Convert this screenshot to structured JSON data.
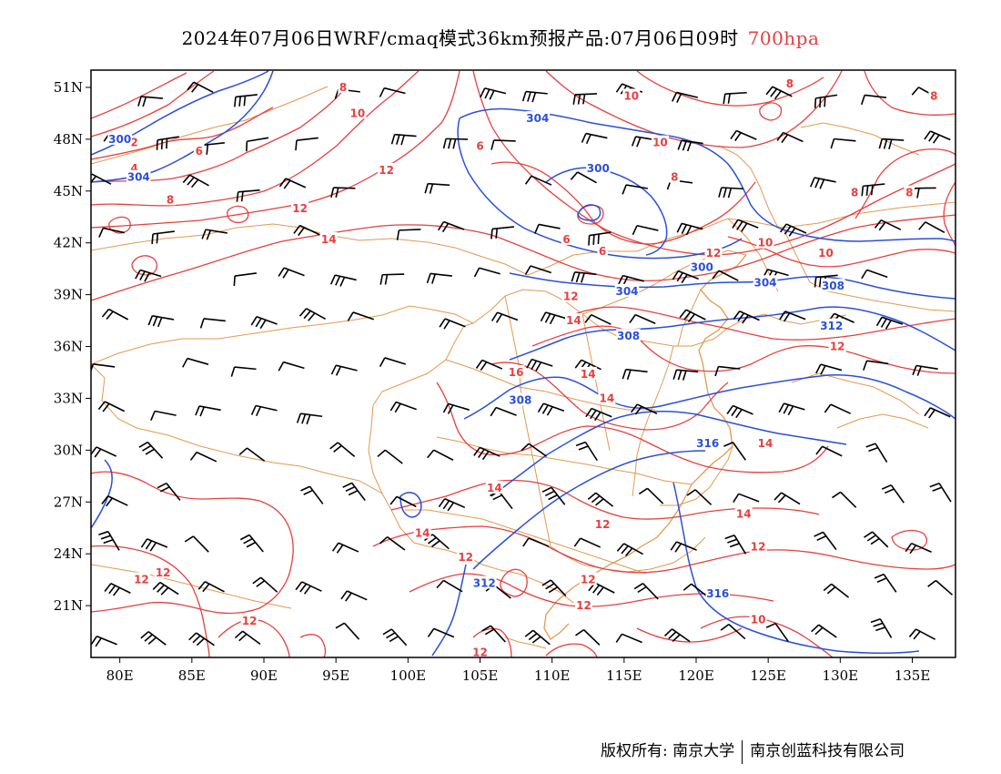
{
  "title": {
    "main": "2024年07月06日WRF/cmaq模式36km预报产品:07月06日09时",
    "level": "700hpa"
  },
  "copyright": {
    "owner": "版权所有: 南京大学",
    "company": "南京创蓝科技有限公司"
  },
  "colors": {
    "temperature": "#e5403f",
    "height": "#2b4fd9",
    "border": "#e09a50",
    "wind": "#000000"
  },
  "map": {
    "lon_range": [
      78,
      138
    ],
    "lat_range": [
      18,
      52
    ],
    "lon_ticks": [
      80,
      85,
      90,
      95,
      100,
      105,
      110,
      115,
      120,
      125,
      130,
      135
    ],
    "lon_tick_labels": [
      "80E",
      "85E",
      "90E",
      "95E",
      "100E",
      "105E",
      "110E",
      "115E",
      "120E",
      "125E",
      "130E",
      "135E"
    ],
    "lat_ticks": [
      21,
      24,
      27,
      30,
      33,
      36,
      39,
      42,
      45,
      48,
      51
    ],
    "lat_tick_labels": [
      "21N",
      "24N",
      "27N",
      "30N",
      "33N",
      "36N",
      "39N",
      "42N",
      "45N",
      "48N",
      "51N"
    ]
  },
  "temperature_labels": [
    {
      "text": "8",
      "lon": 95.5,
      "lat": 51.0
    },
    {
      "text": "10",
      "lon": 96.5,
      "lat": 49.5
    },
    {
      "text": "2",
      "lon": 81.0,
      "lat": 47.8
    },
    {
      "text": "4",
      "lon": 81.0,
      "lat": 46.3
    },
    {
      "text": "6",
      "lon": 85.5,
      "lat": 47.3
    },
    {
      "text": "8",
      "lon": 83.5,
      "lat": 44.5
    },
    {
      "text": "12",
      "lon": 98.5,
      "lat": 46.2
    },
    {
      "text": "12",
      "lon": 92.5,
      "lat": 44.0
    },
    {
      "text": "14",
      "lon": 94.5,
      "lat": 42.2
    },
    {
      "text": "8",
      "lon": 118.5,
      "lat": 45.8
    },
    {
      "text": "10",
      "lon": 117.5,
      "lat": 47.8
    },
    {
      "text": "10",
      "lon": 115.5,
      "lat": 50.5
    },
    {
      "text": "8",
      "lon": 126.5,
      "lat": 51.2
    },
    {
      "text": "8",
      "lon": 136.5,
      "lat": 50.5
    },
    {
      "text": "8",
      "lon": 131.0,
      "lat": 44.9
    },
    {
      "text": "8",
      "lon": 134.8,
      "lat": 44.9
    },
    {
      "text": "6",
      "lon": 105.0,
      "lat": 47.6
    },
    {
      "text": "6",
      "lon": 111.0,
      "lat": 42.2
    },
    {
      "text": "6",
      "lon": 113.5,
      "lat": 41.5
    },
    {
      "text": "12",
      "lon": 121.2,
      "lat": 41.4
    },
    {
      "text": "10",
      "lon": 124.8,
      "lat": 42.0
    },
    {
      "text": "10",
      "lon": 129.0,
      "lat": 41.4
    },
    {
      "text": "12",
      "lon": 111.3,
      "lat": 38.9
    },
    {
      "text": "14",
      "lon": 111.5,
      "lat": 37.5
    },
    {
      "text": "16",
      "lon": 107.5,
      "lat": 34.5
    },
    {
      "text": "14",
      "lon": 112.5,
      "lat": 34.4
    },
    {
      "text": "14",
      "lon": 113.8,
      "lat": 33.0
    },
    {
      "text": "12",
      "lon": 129.8,
      "lat": 36.0
    },
    {
      "text": "14",
      "lon": 124.8,
      "lat": 30.4
    },
    {
      "text": "14",
      "lon": 106.0,
      "lat": 27.8
    },
    {
      "text": "14",
      "lon": 101.0,
      "lat": 25.2
    },
    {
      "text": "12",
      "lon": 104.0,
      "lat": 23.8
    },
    {
      "text": "12",
      "lon": 113.5,
      "lat": 25.7
    },
    {
      "text": "12",
      "lon": 112.5,
      "lat": 22.5
    },
    {
      "text": "12",
      "lon": 112.2,
      "lat": 21.0
    },
    {
      "text": "14",
      "lon": 123.3,
      "lat": 26.3
    },
    {
      "text": "12",
      "lon": 124.3,
      "lat": 24.4
    },
    {
      "text": "10",
      "lon": 124.3,
      "lat": 20.2
    },
    {
      "text": "12",
      "lon": 81.5,
      "lat": 22.5
    },
    {
      "text": "12",
      "lon": 83.0,
      "lat": 22.9
    },
    {
      "text": "12",
      "lon": 89.0,
      "lat": 20.1
    },
    {
      "text": "12",
      "lon": 105.0,
      "lat": 18.3
    }
  ],
  "height_labels": [
    {
      "text": "304",
      "lon": 109.0,
      "lat": 49.2
    },
    {
      "text": "300",
      "lon": 80.0,
      "lat": 48.0
    },
    {
      "text": "304",
      "lon": 81.3,
      "lat": 45.8
    },
    {
      "text": "300",
      "lon": 113.2,
      "lat": 46.3
    },
    {
      "text": "300",
      "lon": 120.4,
      "lat": 40.6
    },
    {
      "text": "304",
      "lon": 124.8,
      "lat": 39.7
    },
    {
      "text": "308",
      "lon": 129.5,
      "lat": 39.5
    },
    {
      "text": "304",
      "lon": 115.2,
      "lat": 39.2
    },
    {
      "text": "312",
      "lon": 129.4,
      "lat": 37.2
    },
    {
      "text": "308",
      "lon": 115.3,
      "lat": 36.6
    },
    {
      "text": "308",
      "lon": 107.8,
      "lat": 32.9
    },
    {
      "text": "316",
      "lon": 120.8,
      "lat": 30.4
    },
    {
      "text": "312",
      "lon": 105.3,
      "lat": 22.3
    },
    {
      "text": "316",
      "lon": 121.5,
      "lat": 21.7
    }
  ]
}
